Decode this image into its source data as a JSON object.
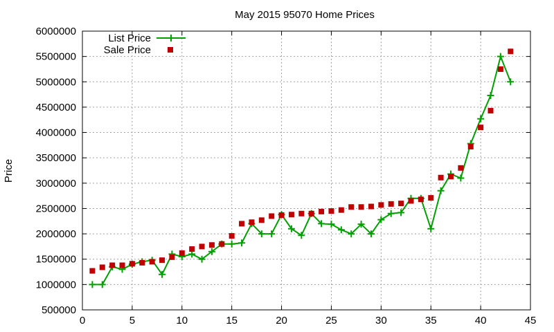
{
  "chart_data": {
    "type": "line",
    "title": "May 2015 95070 Home Prices",
    "xlabel": "",
    "ylabel": "Price",
    "xlim": [
      0,
      45
    ],
    "ylim": [
      500000,
      6000000
    ],
    "x_ticks": [
      0,
      5,
      10,
      15,
      20,
      25,
      30,
      35,
      40,
      45
    ],
    "y_ticks": [
      500000,
      1000000,
      1500000,
      2000000,
      2500000,
      3000000,
      3500000,
      4000000,
      4500000,
      5000000,
      5500000,
      6000000
    ],
    "grid": true,
    "legend_position": "top-left",
    "x": [
      1,
      2,
      3,
      4,
      5,
      6,
      7,
      8,
      9,
      10,
      11,
      12,
      13,
      14,
      15,
      16,
      17,
      18,
      19,
      20,
      21,
      22,
      23,
      24,
      25,
      26,
      27,
      28,
      29,
      30,
      31,
      32,
      33,
      34,
      35,
      36,
      37,
      38,
      39,
      40,
      41,
      42,
      43
    ],
    "series": [
      {
        "name": "List Price",
        "style": "linespoints",
        "marker": "plus",
        "color": "#00a000",
        "values": [
          1000000,
          1000000,
          1350000,
          1300000,
          1400000,
          1450000,
          1480000,
          1200000,
          1600000,
          1550000,
          1600000,
          1500000,
          1650000,
          1800000,
          1800000,
          1820000,
          2200000,
          2000000,
          2000000,
          2380000,
          2100000,
          1970000,
          2400000,
          2200000,
          2190000,
          2080000,
          2000000,
          2190000,
          2000000,
          2280000,
          2400000,
          2420000,
          2700000,
          2700000,
          2100000,
          2850000,
          3180000,
          3100000,
          3780000,
          4270000,
          4730000,
          5500000,
          5000000
        ]
      },
      {
        "name": "Sale Price",
        "style": "points",
        "marker": "square",
        "color": "#c00000",
        "values": [
          1270000,
          1340000,
          1380000,
          1380000,
          1410000,
          1430000,
          1450000,
          1480000,
          1540000,
          1620000,
          1700000,
          1750000,
          1780000,
          1800000,
          1960000,
          2200000,
          2230000,
          2270000,
          2350000,
          2370000,
          2380000,
          2400000,
          2400000,
          2440000,
          2450000,
          2470000,
          2530000,
          2530000,
          2540000,
          2570000,
          2590000,
          2600000,
          2650000,
          2680000,
          2710000,
          3110000,
          3130000,
          3300000,
          3720000,
          4100000,
          4430000,
          5250000,
          5600000
        ]
      }
    ]
  }
}
